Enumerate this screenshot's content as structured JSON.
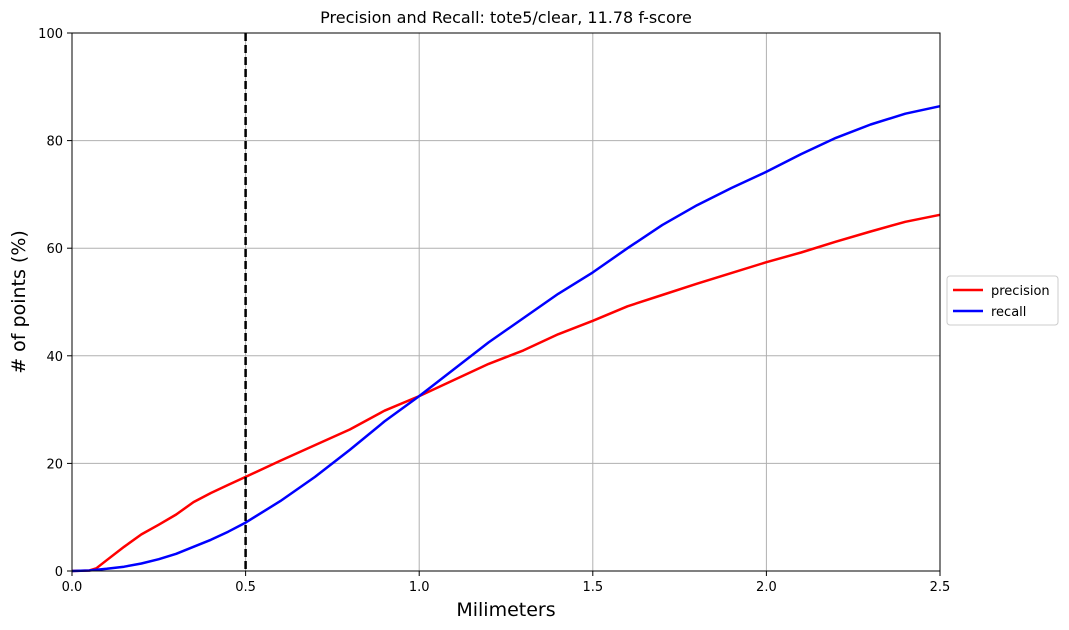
{
  "chart_data": {
    "type": "line",
    "title": "Precision and Recall: tote5/clear, 11.78 f-score",
    "xlabel": "Milimeters",
    "ylabel": "# of points (%)",
    "xlim": [
      0,
      2.5
    ],
    "ylim": [
      0,
      100
    ],
    "x_ticks": [
      0.0,
      0.5,
      1.0,
      1.5,
      2.0,
      2.5
    ],
    "x_tick_labels": [
      "0.0",
      "0.5",
      "1.0",
      "1.5",
      "2.0",
      "2.5"
    ],
    "y_ticks": [
      0,
      20,
      40,
      60,
      80,
      100
    ],
    "y_tick_labels": [
      "0",
      "20",
      "40",
      "60",
      "80",
      "100"
    ],
    "grid": true,
    "threshold_line": {
      "x": 0.5,
      "style": "dashed",
      "color": "#000000"
    },
    "legend": {
      "placement": "right, outside"
    },
    "series": [
      {
        "name": "precision",
        "color": "#ff0000",
        "x": [
          0.0,
          0.05,
          0.07,
          0.1,
          0.15,
          0.2,
          0.25,
          0.3,
          0.35,
          0.4,
          0.45,
          0.5,
          0.6,
          0.7,
          0.8,
          0.9,
          1.0,
          1.1,
          1.2,
          1.3,
          1.4,
          1.5,
          1.6,
          1.7,
          1.8,
          1.9,
          2.0,
          2.1,
          2.2,
          2.3,
          2.4,
          2.5
        ],
        "values": [
          0,
          0.1,
          0.5,
          2,
          4.5,
          6.8,
          8.6,
          10.5,
          12.8,
          14.5,
          16,
          17.5,
          20.5,
          23.4,
          26.3,
          29.8,
          32.5,
          35.5,
          38.5,
          41,
          44,
          46.5,
          49.2,
          51.3,
          53.4,
          55.4,
          57.4,
          59.2,
          61.2,
          63.1,
          64.9,
          66.2
        ]
      },
      {
        "name": "recall",
        "color": "#0000ff",
        "x": [
          0.0,
          0.05,
          0.1,
          0.15,
          0.2,
          0.25,
          0.3,
          0.35,
          0.4,
          0.45,
          0.5,
          0.6,
          0.7,
          0.8,
          0.9,
          1.0,
          1.1,
          1.2,
          1.3,
          1.4,
          1.5,
          1.6,
          1.7,
          1.8,
          1.9,
          2.0,
          2.1,
          2.2,
          2.3,
          2.4,
          2.5
        ],
        "values": [
          0,
          0.1,
          0.4,
          0.8,
          1.4,
          2.2,
          3.2,
          4.5,
          5.8,
          7.3,
          9,
          13,
          17.5,
          22.5,
          27.8,
          32.5,
          37.5,
          42.5,
          47,
          51.5,
          55.5,
          60,
          64.3,
          68,
          71.2,
          74.2,
          77.5,
          80.5,
          83,
          85,
          86.4
        ]
      }
    ]
  }
}
